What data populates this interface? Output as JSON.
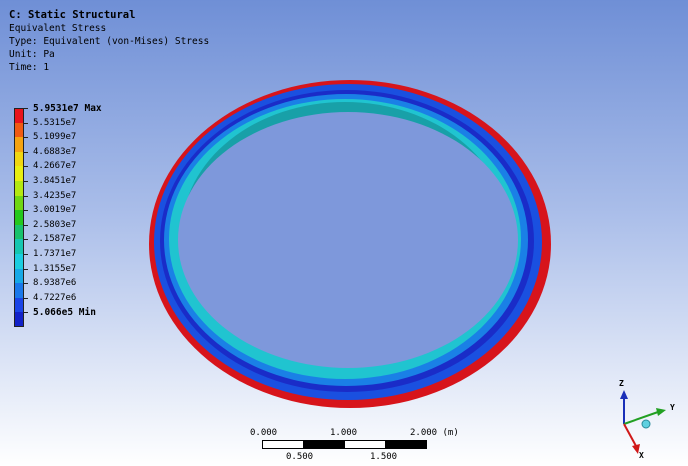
{
  "header": {
    "title": "C: Static Structural",
    "result_name": "Equivalent Stress",
    "type_line": "Type: Equivalent (von-Mises) Stress",
    "unit_line": "Unit: Pa",
    "time_line": "Time: 1"
  },
  "legend": {
    "items": [
      {
        "label": "5.9531e7 Max",
        "color": "#e8141b"
      },
      {
        "label": "5.5315e7",
        "color": "#f05a12"
      },
      {
        "label": "5.1099e7",
        "color": "#f5a310"
      },
      {
        "label": "4.6883e7",
        "color": "#f0d610"
      },
      {
        "label": "4.2667e7",
        "color": "#e8ee10"
      },
      {
        "label": "3.8451e7",
        "color": "#b4e810"
      },
      {
        "label": "3.4235e7",
        "color": "#6fd612"
      },
      {
        "label": "3.0019e7",
        "color": "#24c81c"
      },
      {
        "label": "2.5803e7",
        "color": "#18c26c"
      },
      {
        "label": "2.1587e7",
        "color": "#16c6b0"
      },
      {
        "label": "1.7371e7",
        "color": "#1ccde0"
      },
      {
        "label": "1.3155e7",
        "color": "#16a8e6"
      },
      {
        "label": "8.9387e6",
        "color": "#1a78ea"
      },
      {
        "label": "4.7227e6",
        "color": "#1a44e6"
      },
      {
        "label": "5.066e5 Min",
        "color": "#1222c8"
      }
    ]
  },
  "scale_bar": {
    "top_labels": [
      "0.000",
      "1.000",
      "2.000 (m)"
    ],
    "bottom_labels": [
      "0.500",
      "1.500"
    ]
  },
  "triad": {
    "axes": [
      "Z",
      "Y",
      "X"
    ],
    "colors": {
      "z": "#1a2fb8",
      "y": "#22a022",
      "x": "#d01818"
    }
  }
}
